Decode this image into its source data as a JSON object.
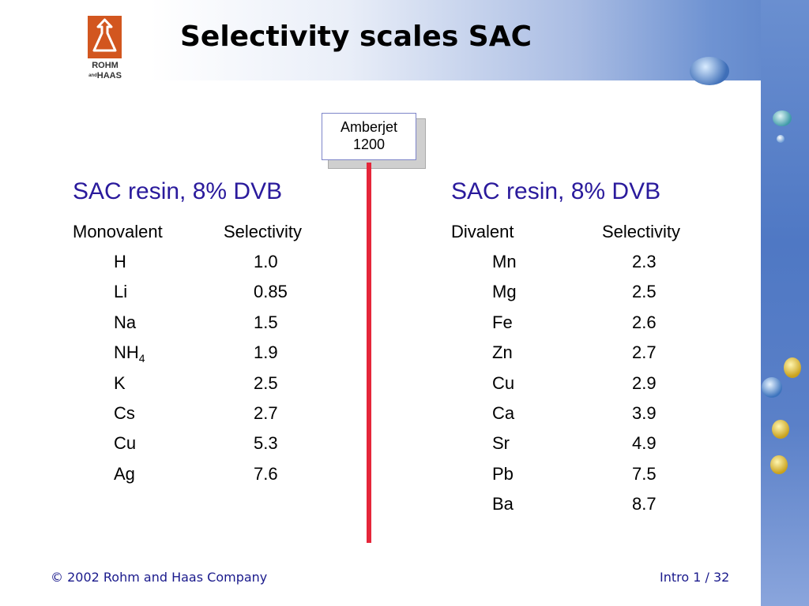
{
  "title": "Selectivity scales SAC",
  "logo": {
    "line1": "ROHM",
    "line2": "HAAS",
    "small": "and"
  },
  "callout": {
    "line1": "Amberjet",
    "line2": "1200"
  },
  "left_table": {
    "heading": "SAC resin, 8% DVB",
    "col1": "Monovalent",
    "col2": "Selectivity",
    "rows": [
      {
        "ion": "H",
        "sub": "",
        "value": "1.0"
      },
      {
        "ion": "Li",
        "sub": "",
        "value": "0.85"
      },
      {
        "ion": "Na",
        "sub": "",
        "value": "1.5"
      },
      {
        "ion": "NH",
        "sub": "4",
        "value": "1.9"
      },
      {
        "ion": "K",
        "sub": "",
        "value": "2.5"
      },
      {
        "ion": "Cs",
        "sub": "",
        "value": "2.7"
      },
      {
        "ion": "Cu",
        "sub": "",
        "value": "5.3"
      },
      {
        "ion": "Ag",
        "sub": "",
        "value": "7.6"
      }
    ]
  },
  "right_table": {
    "heading": "SAC resin, 8% DVB",
    "col1": "Divalent",
    "col2": "Selectivity",
    "rows": [
      {
        "ion": "Mn",
        "value": "2.3"
      },
      {
        "ion": "Mg",
        "value": "2.5"
      },
      {
        "ion": "Fe",
        "value": "2.6"
      },
      {
        "ion": "Zn",
        "value": "2.7"
      },
      {
        "ion": "Cu",
        "value": "2.9"
      },
      {
        "ion": "Ca",
        "value": "3.9"
      },
      {
        "ion": "Sr",
        "value": "4.9"
      },
      {
        "ion": "Pb",
        "value": "7.5"
      },
      {
        "ion": "Ba",
        "value": "8.7"
      }
    ]
  },
  "footer": {
    "copyright": "© 2002 Rohm and Haas Company",
    "page": "Intro 1 /  32"
  },
  "colors": {
    "heading": "#2a1a9c",
    "divider": "#e5263a",
    "logo": "#d2561f",
    "footer": "#1a1a8c"
  }
}
